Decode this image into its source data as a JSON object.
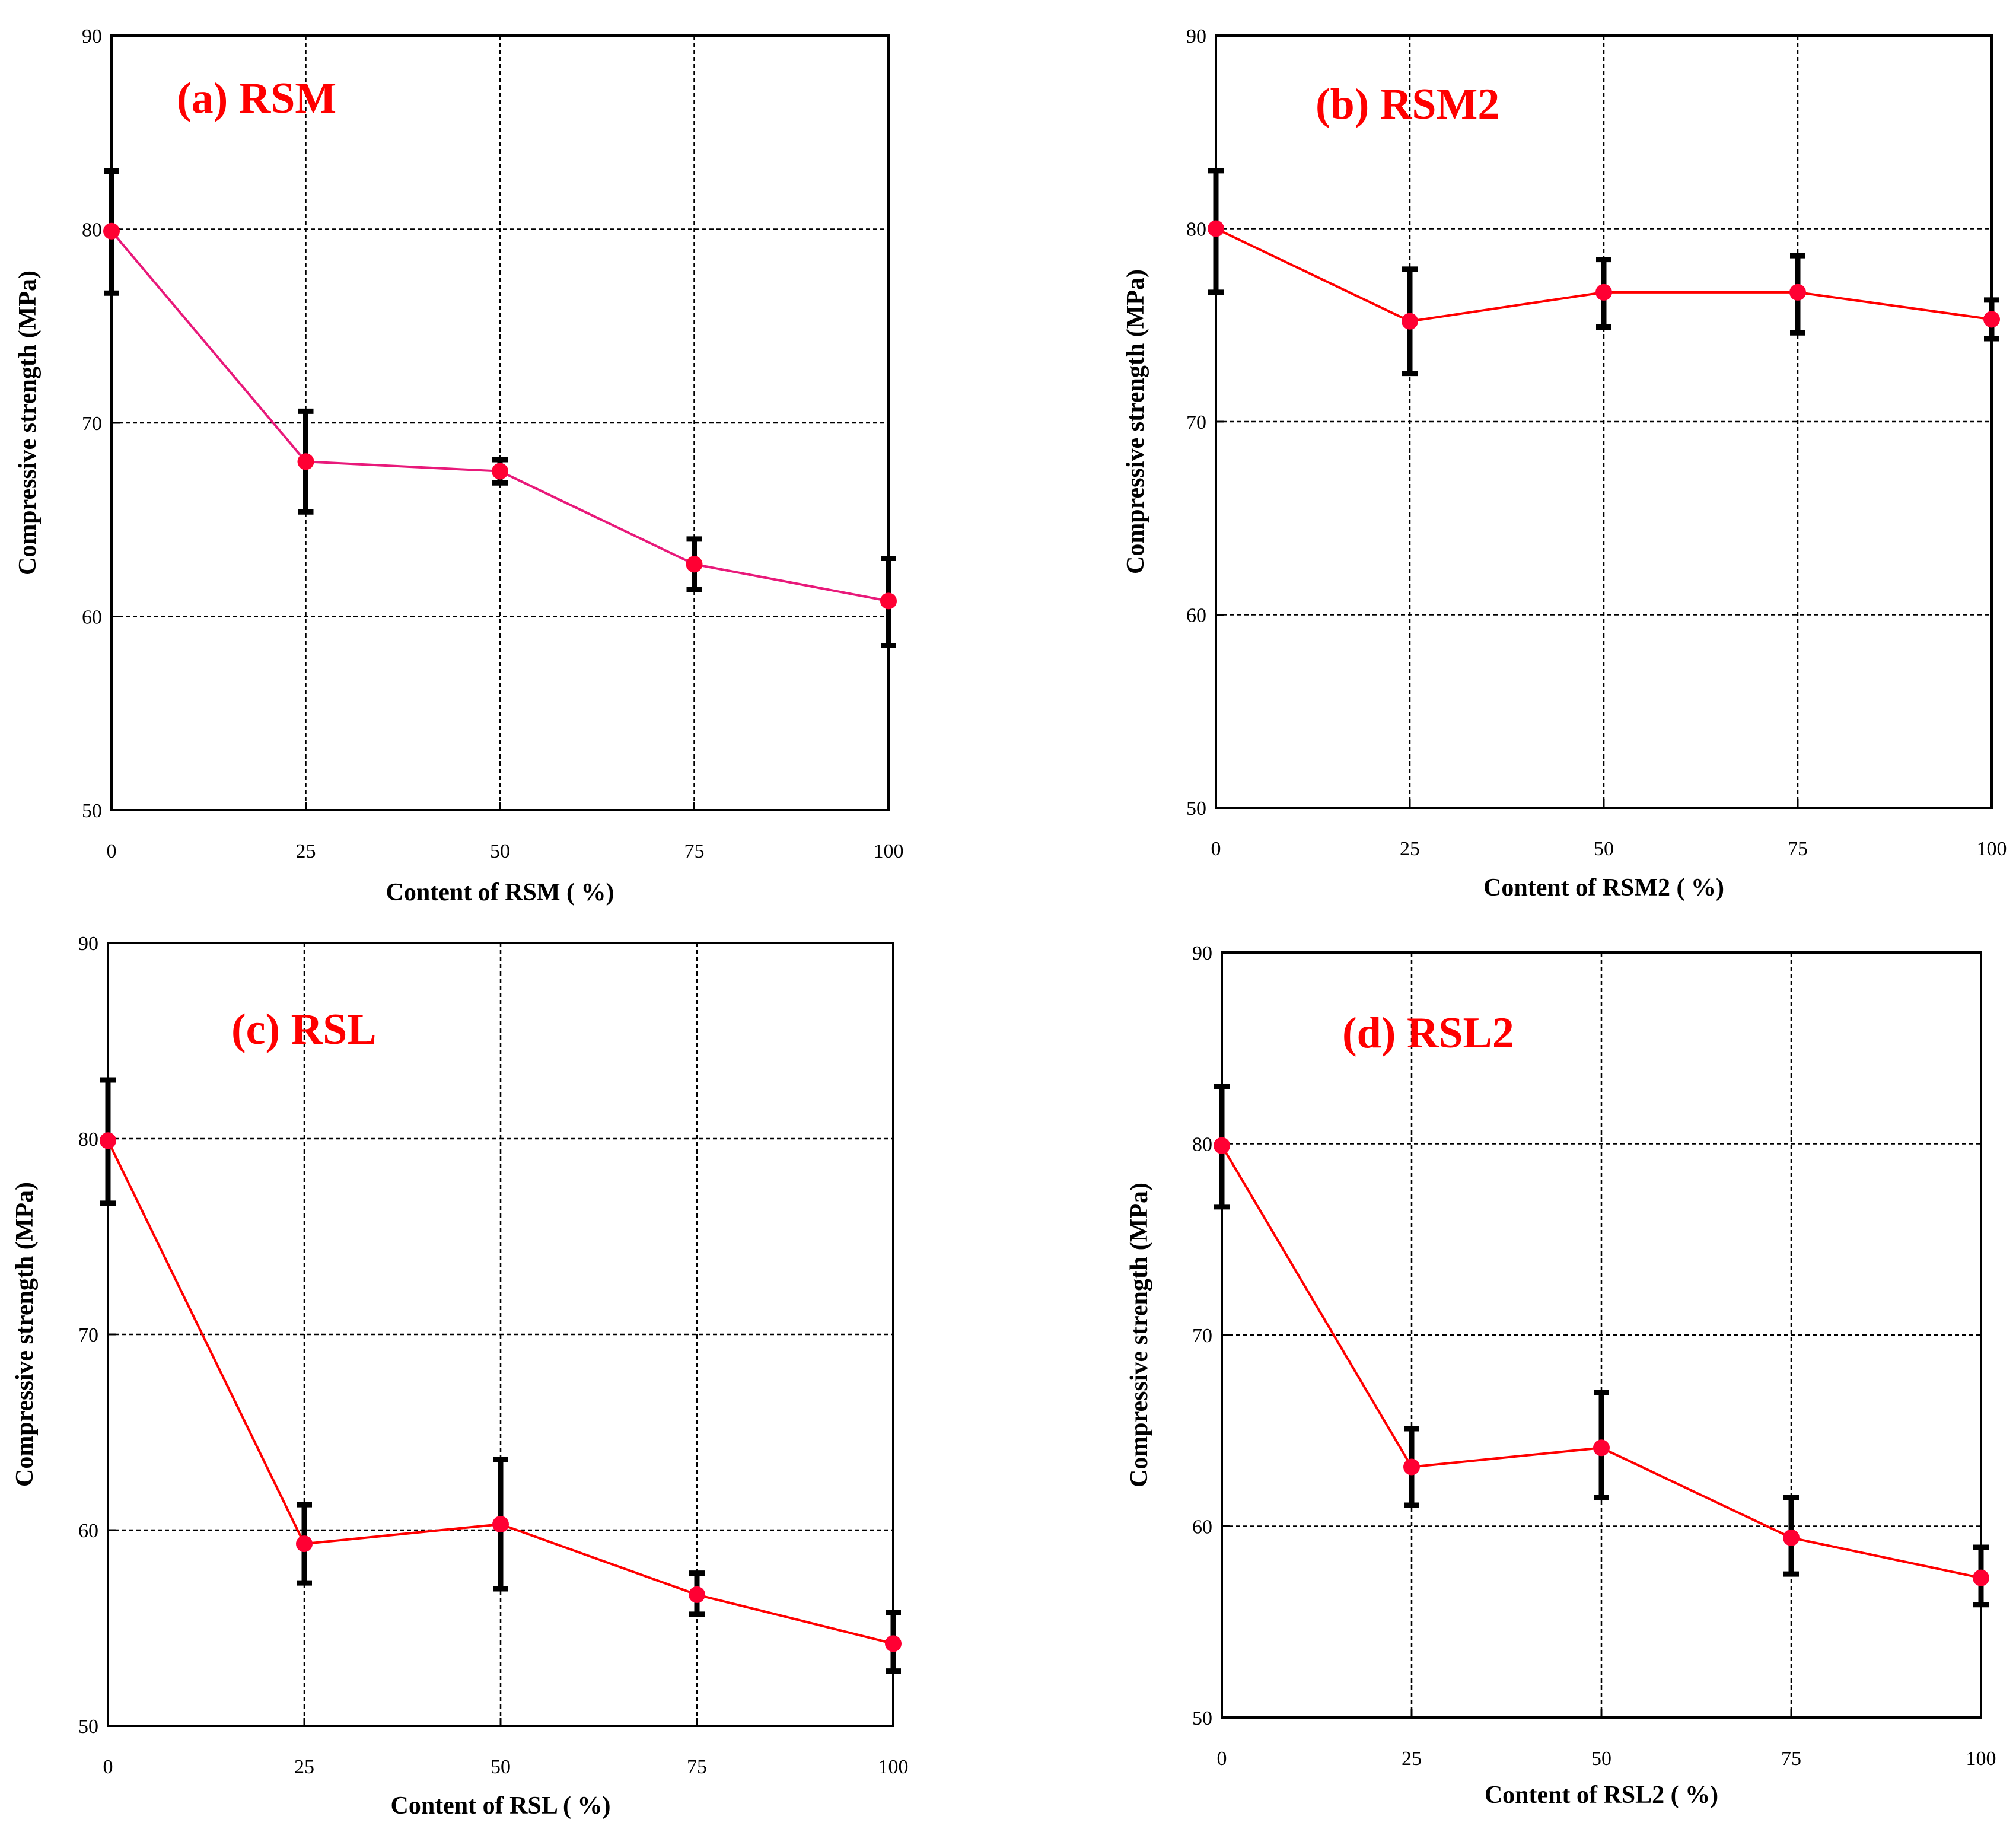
{
  "chart_data": [
    {
      "type": "line",
      "title": "(a)  RSM",
      "xlabel": "Content of RSM ( %)",
      "ylabel": "Compressive strength (MPa)",
      "x": [
        0,
        25,
        50,
        75,
        100
      ],
      "y": [
        79.9,
        68.0,
        67.5,
        62.7,
        60.8
      ],
      "err_low": [
        76.7,
        65.4,
        66.9,
        61.4,
        58.5
      ],
      "err_high": [
        83.0,
        70.6,
        68.1,
        64.0,
        63.0
      ],
      "xlim": [
        0,
        100
      ],
      "ylim": [
        50,
        90
      ],
      "xticks": [
        "0",
        "25",
        "50",
        "75",
        "100"
      ],
      "yticks": [
        "50",
        "60",
        "70",
        "80",
        "90"
      ],
      "line_color": "#e8197a",
      "marker_color": "#ff0033",
      "grid": true
    },
    {
      "type": "line",
      "title": "(b) RSM2",
      "xlabel": "Content of RSM2 ( %)",
      "ylabel": "Compressive strength (MPa)",
      "x": [
        0,
        25,
        50,
        75,
        100
      ],
      "y": [
        80.0,
        75.2,
        76.7,
        76.7,
        75.3
      ],
      "err_low": [
        76.7,
        72.5,
        74.9,
        74.6,
        74.3
      ],
      "err_high": [
        83.0,
        77.9,
        78.4,
        78.6,
        76.3
      ],
      "xlim": [
        0,
        100
      ],
      "ylim": [
        50,
        90
      ],
      "xticks": [
        "0",
        "25",
        "50",
        "75",
        "100"
      ],
      "yticks": [
        "50",
        "60",
        "70",
        "80",
        "90"
      ],
      "line_color": "#ff0000",
      "marker_color": "#ff0033",
      "grid": true
    },
    {
      "type": "line",
      "title": "(c) RSL",
      "xlabel": "Content of RSL ( %)",
      "ylabel": "Compressive strength (MPa)",
      "x": [
        0,
        25,
        50,
        75,
        100
      ],
      "y": [
        79.9,
        59.3,
        60.3,
        56.7,
        54.2
      ],
      "err_low": [
        76.7,
        57.3,
        57.0,
        55.7,
        52.8
      ],
      "err_high": [
        83.0,
        61.3,
        63.6,
        57.8,
        55.8
      ],
      "xlim": [
        0,
        100
      ],
      "ylim": [
        50,
        90
      ],
      "xticks": [
        "0",
        "25",
        "50",
        "75",
        "100"
      ],
      "yticks": [
        "50",
        "60",
        "70",
        "80",
        "90"
      ],
      "line_color": "#ff0000",
      "marker_color": "#ff0033",
      "grid": true
    },
    {
      "type": "line",
      "title": "(d) RSL2",
      "xlabel": "Content of RSL2 ( %)",
      "ylabel": "Compressive strength (MPa)",
      "x": [
        0,
        25,
        50,
        75,
        100
      ],
      "y": [
        79.9,
        63.1,
        64.1,
        59.4,
        57.3
      ],
      "err_low": [
        76.7,
        61.1,
        61.5,
        57.5,
        55.9
      ],
      "err_high": [
        83.0,
        65.1,
        67.0,
        61.5,
        58.9
      ],
      "xlim": [
        0,
        100
      ],
      "ylim": [
        50,
        90
      ],
      "xticks": [
        "0",
        "25",
        "50",
        "75",
        "100"
      ],
      "yticks": [
        "50",
        "60",
        "70",
        "80",
        "90"
      ],
      "line_color": "#ff0000",
      "marker_color": "#ff0033",
      "grid": true
    }
  ]
}
